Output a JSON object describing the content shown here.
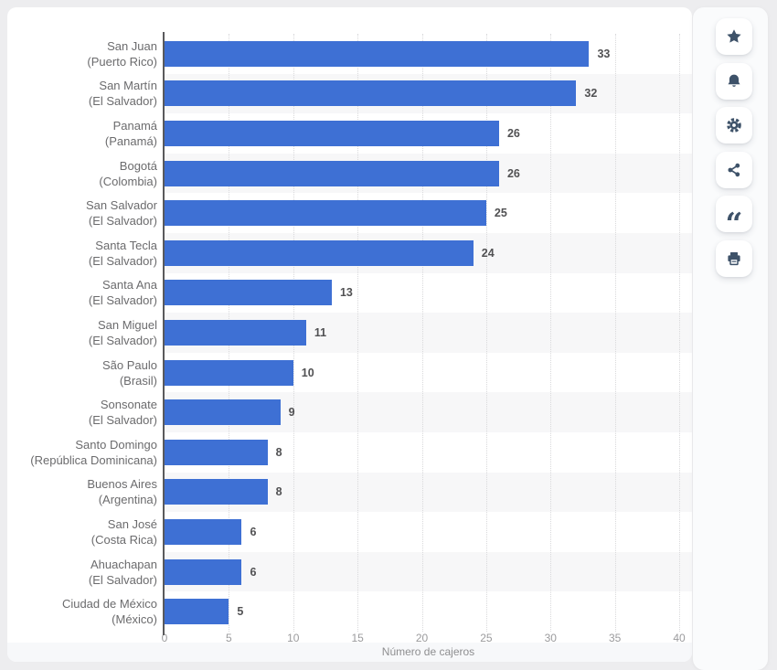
{
  "page": {
    "background": "#EDEDEF"
  },
  "chart_data": {
    "type": "bar",
    "orientation": "horizontal",
    "xlabel": "Número de cajeros",
    "xlim": [
      0,
      40
    ],
    "x_ticks": [
      0,
      5,
      10,
      15,
      20,
      25,
      30,
      35,
      40
    ],
    "grid": "vertical-dotted",
    "legend": "none",
    "bar_color": "#3E70D4",
    "row_stripe_color": "#F7F7F8",
    "rows": [
      {
        "city": "San Juan",
        "country": "(Puerto Rico)",
        "value": 33
      },
      {
        "city": "San Martín",
        "country": "(El Salvador)",
        "value": 32
      },
      {
        "city": "Panamá",
        "country": "(Panamá)",
        "value": 26
      },
      {
        "city": "Bogotá",
        "country": "(Colombia)",
        "value": 26
      },
      {
        "city": "San Salvador",
        "country": "(El Salvador)",
        "value": 25
      },
      {
        "city": "Santa Tecla",
        "country": "(El Salvador)",
        "value": 24
      },
      {
        "city": "Santa Ana",
        "country": "(El Salvador)",
        "value": 13
      },
      {
        "city": "San Miguel",
        "country": "(El Salvador)",
        "value": 11
      },
      {
        "city": "São Paulo",
        "country": "(Brasil)",
        "value": 10
      },
      {
        "city": "Sonsonate",
        "country": "(El Salvador)",
        "value": 9
      },
      {
        "city": "Santo Domingo",
        "country": "(República Dominicana)",
        "value": 8
      },
      {
        "city": "Buenos Aires",
        "country": "(Argentina)",
        "value": 8
      },
      {
        "city": "San José",
        "country": "(Costa Rica)",
        "value": 6
      },
      {
        "city": "Ahuachapan",
        "country": "(El Salvador)",
        "value": 6
      },
      {
        "city": "Ciudad de México",
        "country": "(México)",
        "value": 5
      }
    ]
  },
  "toolbar": {
    "icon_color": "#3E5269",
    "buttons": [
      {
        "name": "favorite",
        "icon": "star-icon"
      },
      {
        "name": "notifications",
        "icon": "bell-icon"
      },
      {
        "name": "settings",
        "icon": "gear-icon"
      },
      {
        "name": "share",
        "icon": "share-icon"
      },
      {
        "name": "cite",
        "icon": "quote-icon"
      },
      {
        "name": "print",
        "icon": "printer-icon"
      }
    ]
  }
}
